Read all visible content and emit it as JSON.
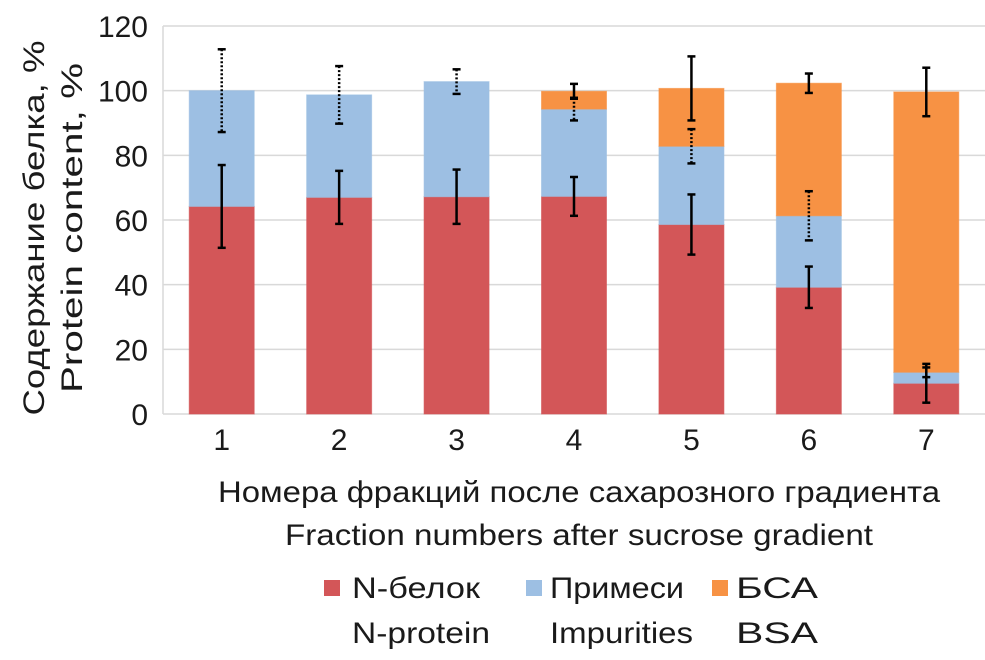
{
  "chart_data": {
    "type": "bar",
    "stacked": true,
    "categories": [
      "1",
      "2",
      "3",
      "4",
      "5",
      "6",
      "7"
    ],
    "series": [
      {
        "name": "N-белок / N-protein",
        "label_ru": "N-белок",
        "label_en": "N-protein",
        "color": "#D35658",
        "values": [
          64.2,
          67.0,
          67.2,
          67.3,
          58.6,
          39.2,
          9.5
        ],
        "errors": [
          12.8,
          8.2,
          8.4,
          6.0,
          9.3,
          6.4,
          6.0
        ],
        "error_style": "solid"
      },
      {
        "name": "Примеси / Impurities",
        "label_ru": "Примеси",
        "label_en": "Impurities",
        "color": "#9DBFE3",
        "values": [
          35.8,
          31.7,
          35.6,
          27.0,
          24.2,
          22.1,
          3.4
        ],
        "errors": [
          12.8,
          8.9,
          3.8,
          3.5,
          5.3,
          7.6,
          1.5
        ],
        "error_style": "dotted"
      },
      {
        "name": "БСА / BSA",
        "label_ru": "БСА",
        "label_en": "BSA",
        "color": "#F79244",
        "values": [
          0,
          0,
          0,
          5.5,
          17.9,
          41.0,
          86.7
        ],
        "errors": [
          null,
          null,
          null,
          2.3,
          9.9,
          3.0,
          7.5
        ],
        "error_style": "solid"
      }
    ],
    "ylim": [
      0,
      120
    ],
    "yticks": [
      "0",
      "20",
      "40",
      "60",
      "80",
      "100",
      "120"
    ],
    "ylabel": [
      "Содержание белка, %",
      "Protein content, %"
    ],
    "xlabel": [
      "Номера фракций после сахарозного градиента",
      "Fraction numbers after sucrose gradient"
    ],
    "grid": true,
    "legend_position": "bottom"
  }
}
